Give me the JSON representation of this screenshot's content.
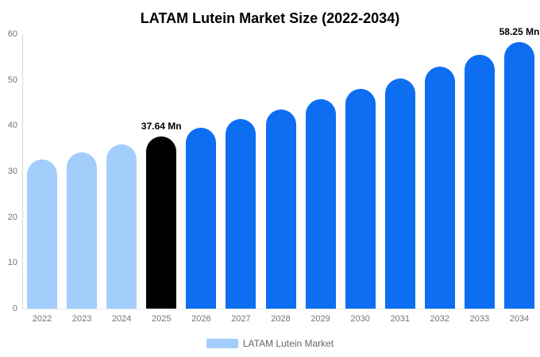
{
  "chart_data": {
    "type": "bar",
    "title": "LATAM Lutein Market Size (2022-2034)",
    "categories": [
      "2022",
      "2023",
      "2024",
      "2025",
      "2026",
      "2027",
      "2028",
      "2029",
      "2030",
      "2031",
      "2032",
      "2033",
      "2034"
    ],
    "series": [
      {
        "name": "LATAM Lutein Market",
        "values": [
          32.54,
          34.16,
          35.86,
          37.64,
          39.51,
          41.47,
          43.53,
          45.7,
          47.97,
          50.35,
          52.85,
          55.48,
          58.25
        ]
      }
    ],
    "unit": "Mn",
    "xlabel": "",
    "ylabel": "",
    "ylim": [
      0,
      60
    ],
    "yticks": [
      0,
      10,
      20,
      30,
      40,
      50,
      60
    ],
    "grid": false,
    "legend_position": "bottom",
    "bar_style": "rounded-top",
    "annotations": [
      {
        "category": "2025",
        "label": "37.64 Mn"
      },
      {
        "category": "2034",
        "label": "58.25 Mn"
      }
    ],
    "colors": {
      "historical": "#a3cefb",
      "base_year": "#000000",
      "forecast": "#0d6ef2"
    },
    "point_color_keys": [
      "historical",
      "historical",
      "historical",
      "base_year",
      "forecast",
      "forecast",
      "forecast",
      "forecast",
      "forecast",
      "forecast",
      "forecast",
      "forecast",
      "forecast"
    ],
    "axis_text_color": "#757575",
    "legend_text_color": "#666666",
    "axis_line_color": "#d8d8d8"
  },
  "legend": {
    "label": "LATAM Lutein Market"
  }
}
